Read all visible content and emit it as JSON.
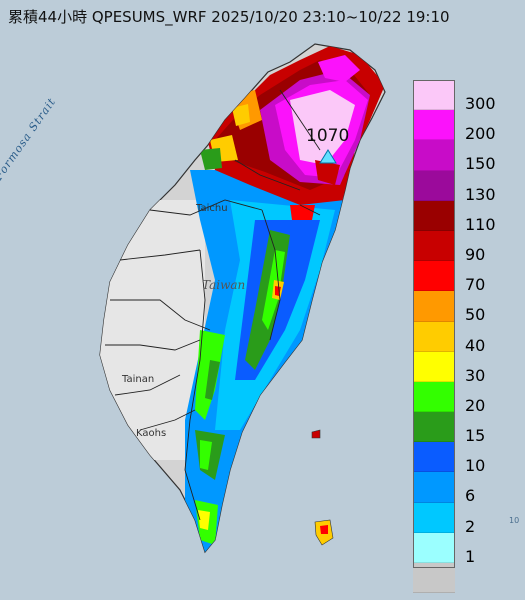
{
  "title": "累積44小時 QPESUMS_WRF 2025/10/20 23:10~10/22 19:10",
  "map_labels": {
    "strait": "Formosa Strait",
    "island": "Taiwan",
    "taichung": "Taichu",
    "tainan": "Tainan",
    "kaohsiung": "Kaohs",
    "edge_mark": "10"
  },
  "max_value": "1070",
  "legend": [
    {
      "label": "300",
      "color": "#fbc8f8"
    },
    {
      "label": "200",
      "color": "#fb12fb"
    },
    {
      "label": "150",
      "color": "#c80cc8"
    },
    {
      "label": "130",
      "color": "#9b0a9b"
    },
    {
      "label": "110",
      "color": "#9a0000"
    },
    {
      "label": "90",
      "color": "#c80000"
    },
    {
      "label": "70",
      "color": "#ff0000"
    },
    {
      "label": "50",
      "color": "#ff9900"
    },
    {
      "label": "40",
      "color": "#ffcc00"
    },
    {
      "label": "30",
      "color": "#ffff00"
    },
    {
      "label": "20",
      "color": "#33ff00"
    },
    {
      "label": "15",
      "color": "#2a9c1a"
    },
    {
      "label": "10",
      "color": "#0a5cff"
    },
    {
      "label": "6",
      "color": "#0098ff"
    },
    {
      "label": "2",
      "color": "#00c8ff"
    },
    {
      "label": "1",
      "color": "#9bffff"
    },
    {
      "label": "",
      "color": "#c8c8c8"
    }
  ]
}
